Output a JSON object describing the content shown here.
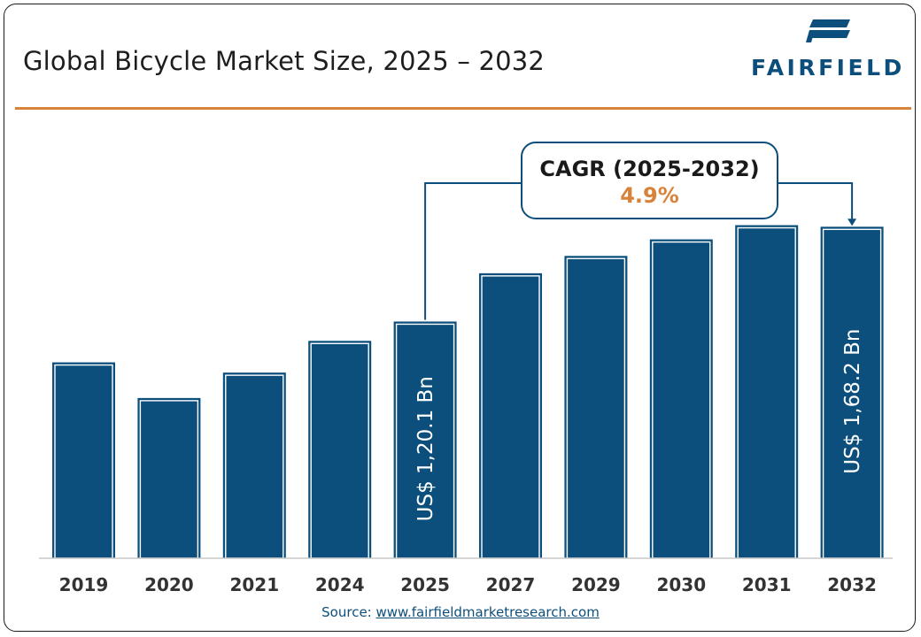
{
  "header": {
    "title": "Global Bicycle Market Size, 2025 – 2032",
    "brand": "FAIRFIELD"
  },
  "source": {
    "label": "Source:",
    "url": "www.fairfieldmarketresearch.com"
  },
  "colors": {
    "bar": "#0d4f7c",
    "accent": "#d8823a",
    "text": "#1e1e1e"
  },
  "chart_data": {
    "type": "bar",
    "title": "Global Bicycle Market Size, 2025 – 2032",
    "xlabel": "",
    "ylabel": "",
    "categories": [
      "2019",
      "2020",
      "2021",
      "2024",
      "2025",
      "2027",
      "2029",
      "2030",
      "2031",
      "2032"
    ],
    "values": [
      99.4,
      81.3,
      94.2,
      110.3,
      120.1,
      144.6,
      153.4,
      161.8,
      169.0,
      168.2
    ],
    "ylim": [
      0,
      180
    ],
    "grid": false,
    "legend": "none",
    "bar_labels": [
      {
        "category": "2025",
        "text": "US$ 1,20.1 Bn"
      },
      {
        "category": "2032",
        "text": "US$ 1,68.2 Bn"
      }
    ],
    "annotation": {
      "label": "CAGR (2025-2032)",
      "value": "4.9%",
      "from": "2025",
      "to": "2032"
    }
  }
}
